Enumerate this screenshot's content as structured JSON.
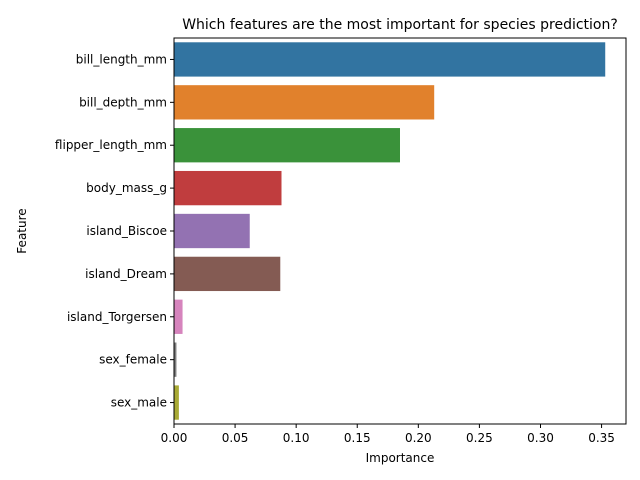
{
  "chart_data": {
    "type": "bar",
    "orientation": "horizontal",
    "title": "Which features are the most important for species prediction?",
    "xlabel": "Importance",
    "ylabel": "Feature",
    "xlim": [
      0,
      0.37
    ],
    "xticks": [
      0.0,
      0.05,
      0.1,
      0.15,
      0.2,
      0.25,
      0.3,
      0.35
    ],
    "xtick_labels": [
      "0.00",
      "0.05",
      "0.10",
      "0.15",
      "0.20",
      "0.25",
      "0.30",
      "0.35"
    ],
    "grid": false,
    "categories": [
      "bill_length_mm",
      "bill_depth_mm",
      "flipper_length_mm",
      "body_mass_g",
      "island_Biscoe",
      "island_Dream",
      "island_Torgersen",
      "sex_female",
      "sex_male"
    ],
    "values": [
      0.353,
      0.213,
      0.185,
      0.088,
      0.062,
      0.087,
      0.007,
      0.002,
      0.004
    ],
    "colors": [
      "#3274a1",
      "#e1812c",
      "#3a923a",
      "#c03d3e",
      "#9372b2",
      "#845b53",
      "#d684bd",
      "#7f7f7f",
      "#a9aa35"
    ]
  }
}
